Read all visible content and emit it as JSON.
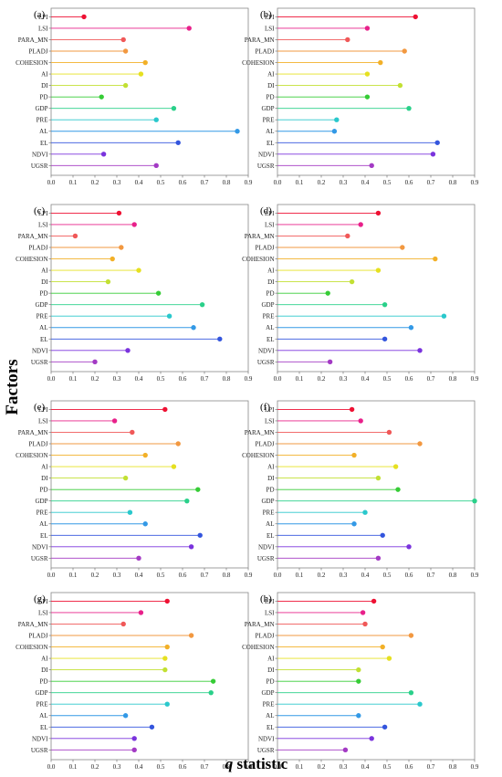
{
  "figure": {
    "ylabel": "Factors",
    "xlabel_symbol": "q",
    "xlabel_rest": " statistic"
  },
  "chart_data": [
    {
      "type": "lollipop",
      "label": "(a)",
      "categories": [
        "LPI",
        "LSI",
        "PARA_MN",
        "PLADJ",
        "COHESION",
        "AI",
        "DI",
        "PD",
        "GDP",
        "PRE",
        "AL",
        "EL",
        "NDVI",
        "UGSR"
      ],
      "values": [
        0.15,
        0.63,
        0.33,
        0.34,
        0.43,
        0.41,
        0.34,
        0.23,
        0.56,
        0.48,
        0.85,
        0.58,
        0.24,
        0.48
      ],
      "xticks": [
        "0.0",
        "0.1",
        "0.2",
        "0.3",
        "0.4",
        "0.5",
        "0.6",
        "0.7",
        "0.8",
        "0.9"
      ],
      "xlim": [
        0,
        0.9
      ]
    },
    {
      "type": "lollipop",
      "label": "(b)",
      "categories": [
        "LPI",
        "LSI",
        "PARA_MN",
        "PLADJ",
        "COHESION",
        "AI",
        "DI",
        "PD",
        "GDP",
        "PRE",
        "AL",
        "EL",
        "NDVI",
        "UGSR"
      ],
      "values": [
        0.63,
        0.41,
        0.32,
        0.58,
        0.47,
        0.41,
        0.56,
        0.41,
        0.6,
        0.27,
        0.26,
        0.73,
        0.71,
        0.43
      ],
      "xticks": [
        "0.0",
        "0.1",
        "0.2",
        "0.3",
        "0.4",
        "0.5",
        "0.6",
        "0.7",
        "0.8",
        "0.9"
      ],
      "xlim": [
        0,
        0.9
      ]
    },
    {
      "type": "lollipop",
      "label": "(c)",
      "categories": [
        "LPI",
        "LSI",
        "PARA_MN",
        "PLADJ",
        "COHESION",
        "AI",
        "DI",
        "PD",
        "GDP",
        "PRE",
        "AL",
        "EL",
        "NDVI",
        "UGSR"
      ],
      "values": [
        0.31,
        0.38,
        0.11,
        0.32,
        0.28,
        0.4,
        0.26,
        0.49,
        0.69,
        0.54,
        0.65,
        0.77,
        0.35,
        0.2
      ],
      "xticks": [
        "0.0",
        "0.1",
        "0.2",
        "0.3",
        "0.4",
        "0.5",
        "0.6",
        "0.7",
        "0.8",
        "0.9"
      ],
      "xlim": [
        0,
        0.9
      ]
    },
    {
      "type": "lollipop",
      "label": "(d)",
      "categories": [
        "LPI",
        "LSI",
        "PARA_MN",
        "PLADJ",
        "COHESION",
        "AI",
        "DI",
        "PD",
        "GDP",
        "PRE",
        "AL",
        "EL",
        "NDVI",
        "UGSR"
      ],
      "values": [
        0.46,
        0.38,
        0.32,
        0.57,
        0.72,
        0.46,
        0.34,
        0.23,
        0.49,
        0.76,
        0.61,
        0.49,
        0.65,
        0.24
      ],
      "xticks": [
        "0.0",
        "0.1",
        "0.2",
        "0.3",
        "0.4",
        "0.5",
        "0.6",
        "0.7",
        "0.8",
        "0.9"
      ],
      "xlim": [
        0,
        0.9
      ]
    },
    {
      "type": "lollipop",
      "label": "(e)",
      "categories": [
        "LPI",
        "LSI",
        "PARA_MN",
        "PLADJ",
        "COHESION",
        "AI",
        "DI",
        "PD",
        "GDP",
        "PRE",
        "AL",
        "EL",
        "NDVI",
        "UGSR"
      ],
      "values": [
        0.52,
        0.29,
        0.37,
        0.58,
        0.43,
        0.56,
        0.34,
        0.67,
        0.62,
        0.36,
        0.43,
        0.68,
        0.64,
        0.4
      ],
      "xticks": [
        "0.0",
        "0.1",
        "0.2",
        "0.3",
        "0.4",
        "0.5",
        "0.6",
        "0.7",
        "0.8",
        "0.9"
      ],
      "xlim": [
        0,
        0.9
      ]
    },
    {
      "type": "lollipop",
      "label": "(f)",
      "categories": [
        "LPI",
        "LSI",
        "PARA_MN",
        "PLADJ",
        "COHESION",
        "AI",
        "DI",
        "PD",
        "GDP",
        "PRE",
        "AL",
        "EL",
        "NDVI",
        "UGSR"
      ],
      "values": [
        0.34,
        0.38,
        0.51,
        0.65,
        0.35,
        0.54,
        0.46,
        0.55,
        0.9,
        0.4,
        0.35,
        0.48,
        0.6,
        0.46
      ],
      "xticks": [
        "0.0",
        "0.1",
        "0.2",
        "0.3",
        "0.4",
        "0.5",
        "0.6",
        "0.7",
        "0.8",
        "0.9"
      ],
      "xlim": [
        0,
        0.9
      ]
    },
    {
      "type": "lollipop",
      "label": "(g)",
      "categories": [
        "LPI",
        "LSI",
        "PARA_MN",
        "PLADJ",
        "COHESION",
        "AI",
        "DI",
        "PD",
        "GDP",
        "PRE",
        "AL",
        "EL",
        "NDVI",
        "UGSR"
      ],
      "values": [
        0.53,
        0.41,
        0.33,
        0.64,
        0.53,
        0.52,
        0.52,
        0.74,
        0.73,
        0.53,
        0.34,
        0.46,
        0.38,
        0.38
      ],
      "xticks": [
        "0.0",
        "0.1",
        "0.2",
        "0.3",
        "0.4",
        "0.5",
        "0.6",
        "0.7",
        "0.8",
        "0.9"
      ],
      "xlim": [
        0,
        0.9
      ]
    },
    {
      "type": "lollipop",
      "label": "(h)",
      "categories": [
        "LPI",
        "LSI",
        "PARA_MN",
        "PLADJ",
        "COHESION",
        "AI",
        "DI",
        "PD",
        "GDP",
        "PRE",
        "AL",
        "EL",
        "NDVI",
        "UGSR"
      ],
      "values": [
        0.44,
        0.39,
        0.4,
        0.61,
        0.48,
        0.51,
        0.37,
        0.37,
        0.61,
        0.65,
        0.37,
        0.49,
        0.43,
        0.31
      ],
      "xticks": [
        "0.0",
        "0.1",
        "0.2",
        "0.3",
        "0.4",
        "0.5",
        "0.6",
        "0.7",
        "0.8",
        "0.9"
      ],
      "xlim": [
        0,
        0.9
      ]
    }
  ],
  "colors": [
    "#ee1133",
    "#e8208a",
    "#f05858",
    "#f29840",
    "#f2b028",
    "#e6e020",
    "#c2e033",
    "#36cc36",
    "#2ad08a",
    "#2ac8cc",
    "#3399e6",
    "#3355dd",
    "#7a33dd",
    "#a33ac4"
  ]
}
